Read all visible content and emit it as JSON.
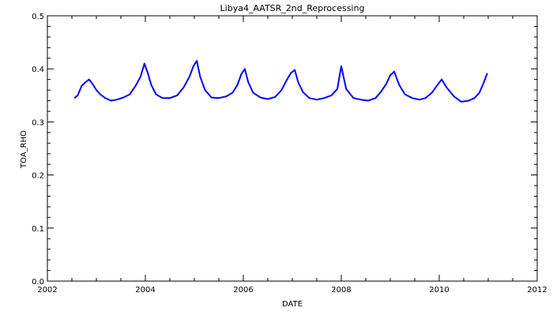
{
  "chart_data": {
    "type": "line",
    "title": "Libya4_AATSR_2nd_Reprocessing",
    "xlabel": "DATE",
    "ylabel": "TOA_RHO",
    "xlim": [
      2002,
      2012
    ],
    "ylim": [
      0.0,
      0.5
    ],
    "x_ticks": [
      "2002",
      "2004",
      "2006",
      "2008",
      "2010",
      "2012"
    ],
    "y_ticks": [
      "0.0",
      "0.1",
      "0.2",
      "0.3",
      "0.4",
      "0.5"
    ],
    "grid": false,
    "legend": "none",
    "series": [
      {
        "color": "#0000ff",
        "x": [
          2002.55,
          2002.62,
          2002.7,
          2002.78,
          2002.85,
          2002.92,
          2003.0,
          2003.08,
          2003.18,
          2003.3,
          2003.42,
          2003.55,
          2003.68,
          2003.8,
          2003.9,
          2003.98,
          2004.05,
          2004.12,
          2004.22,
          2004.35,
          2004.5,
          2004.65,
          2004.78,
          2004.9,
          2004.98,
          2005.05,
          2005.12,
          2005.22,
          2005.35,
          2005.5,
          2005.65,
          2005.78,
          2005.88,
          2005.96,
          2006.03,
          2006.1,
          2006.2,
          2006.35,
          2006.5,
          2006.65,
          2006.78,
          2006.88,
          2006.97,
          2007.05,
          2007.12,
          2007.22,
          2007.35,
          2007.5,
          2007.65,
          2007.8,
          2007.92,
          2008.0,
          2008.1,
          2008.25,
          2008.4,
          2008.55,
          2008.7,
          2008.82,
          2008.92,
          2009.0,
          2009.08,
          2009.18,
          2009.3,
          2009.45,
          2009.6,
          2009.72,
          2009.85,
          2009.95,
          2010.05,
          2010.15,
          2010.3,
          2010.45,
          2010.6,
          2010.72,
          2010.82,
          2010.9,
          2010.98
        ],
        "y": [
          0.345,
          0.35,
          0.368,
          0.375,
          0.38,
          0.372,
          0.36,
          0.352,
          0.345,
          0.34,
          0.342,
          0.346,
          0.352,
          0.368,
          0.385,
          0.41,
          0.392,
          0.37,
          0.352,
          0.345,
          0.345,
          0.35,
          0.365,
          0.385,
          0.405,
          0.415,
          0.385,
          0.36,
          0.346,
          0.345,
          0.348,
          0.355,
          0.37,
          0.39,
          0.4,
          0.375,
          0.355,
          0.346,
          0.343,
          0.347,
          0.36,
          0.378,
          0.392,
          0.398,
          0.375,
          0.356,
          0.345,
          0.342,
          0.345,
          0.35,
          0.362,
          0.405,
          0.362,
          0.345,
          0.342,
          0.34,
          0.345,
          0.358,
          0.372,
          0.388,
          0.395,
          0.37,
          0.352,
          0.345,
          0.342,
          0.345,
          0.355,
          0.368,
          0.38,
          0.365,
          0.348,
          0.338,
          0.34,
          0.345,
          0.355,
          0.372,
          0.392
        ]
      }
    ]
  }
}
